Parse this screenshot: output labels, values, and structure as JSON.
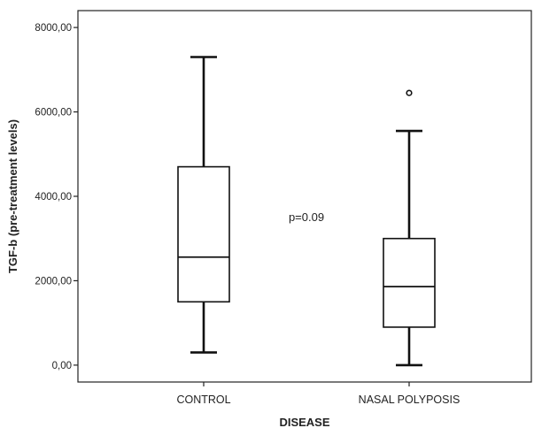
{
  "chart_data": {
    "type": "boxplot",
    "xlabel": "DISEASE",
    "ylabel": "TGF-b (pre-treatment levels)",
    "ylim": [
      -400,
      8400
    ],
    "yticks": [
      0,
      2000,
      4000,
      6000,
      8000
    ],
    "ytick_labels": [
      "0,00",
      "2000,00",
      "4000,00",
      "6000,00",
      "8000,00"
    ],
    "categories": [
      "CONTROL",
      "NASAL POLYPOSIS"
    ],
    "boxes": [
      {
        "category": "CONTROL",
        "whisker_low": 300,
        "q1": 1500,
        "median": 2560,
        "q3": 4700,
        "whisker_high": 7300,
        "outliers": []
      },
      {
        "category": "NASAL POLYPOSIS",
        "whisker_low": 0,
        "q1": 900,
        "median": 1860,
        "q3": 3000,
        "whisker_high": 5550,
        "outliers": [
          6450
        ]
      }
    ],
    "annotation": {
      "text": "p=0.09",
      "x_between": [
        0,
        1
      ],
      "y": 3500
    },
    "grid": false,
    "legend": "none",
    "colors": {
      "axis": "#222222",
      "box_stroke": "#111111",
      "box_fill": "#ffffff"
    }
  }
}
